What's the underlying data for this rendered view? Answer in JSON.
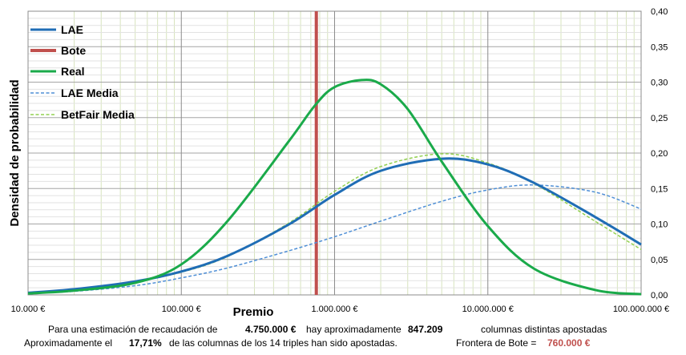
{
  "chart_data": {
    "type": "line",
    "title": "",
    "xlabel": "Premio",
    "ylabel": "Densidad de probabilidad",
    "x_scale": "log",
    "xlim": [
      10000,
      100000000
    ],
    "ylim": [
      0,
      0.4
    ],
    "x_ticks": [
      "10.000 €",
      "100.000 €",
      "1.000.000 €",
      "10.000.000 €",
      "100.000.000 €"
    ],
    "y_ticks": [
      "0,00",
      "0,05",
      "0,10",
      "0,15",
      "0,20",
      "0,25",
      "0,30",
      "0,35",
      "0,40"
    ],
    "grid": true,
    "legend_position": "top-left",
    "series": [
      {
        "name": "LAE",
        "color": "#1f6db5",
        "style": "solid",
        "width": 3,
        "x": [
          10000,
          20000,
          50000,
          100000,
          200000,
          500000,
          1000000,
          2000000,
          5000000,
          10000000,
          20000000,
          50000000,
          100000000
        ],
        "y": [
          0.003,
          0.008,
          0.019,
          0.033,
          0.055,
          0.099,
          0.141,
          0.175,
          0.192,
          0.184,
          0.158,
          0.11,
          0.071
        ]
      },
      {
        "name": "Bote",
        "color": "#c0504d",
        "style": "solid",
        "width": 4,
        "x": [
          760000,
          760000
        ],
        "y": [
          0,
          0.4
        ]
      },
      {
        "name": "Real",
        "color": "#1aaa4a",
        "style": "solid",
        "width": 3,
        "x": [
          10000,
          20000,
          50000,
          100000,
          200000,
          500000,
          750000,
          1000000,
          1500000,
          2000000,
          3000000,
          5000000,
          10000000,
          20000000,
          50000000,
          100000000
        ],
        "y": [
          0.002,
          0.006,
          0.017,
          0.043,
          0.104,
          0.216,
          0.268,
          0.293,
          0.303,
          0.297,
          0.262,
          0.188,
          0.097,
          0.037,
          0.007,
          0.001
        ]
      },
      {
        "name": "LAE Media",
        "color": "#4f8fd6",
        "style": "dashed",
        "width": 1.5,
        "x": [
          10000,
          20000,
          50000,
          100000,
          200000,
          500000,
          1000000,
          2000000,
          5000000,
          10000000,
          20000000,
          50000000,
          100000000
        ],
        "y": [
          0.002,
          0.005,
          0.013,
          0.024,
          0.038,
          0.062,
          0.082,
          0.104,
          0.132,
          0.148,
          0.155,
          0.145,
          0.121
        ]
      },
      {
        "name": "BetFair Media",
        "color": "#92d050",
        "style": "dashed",
        "width": 1.5,
        "x": [
          10000,
          20000,
          50000,
          100000,
          200000,
          500000,
          1000000,
          2000000,
          5000000,
          10000000,
          20000000,
          50000000,
          100000000
        ],
        "y": [
          0.003,
          0.008,
          0.019,
          0.032,
          0.054,
          0.101,
          0.146,
          0.181,
          0.199,
          0.186,
          0.157,
          0.104,
          0.064
        ]
      }
    ]
  },
  "footer": {
    "line1_a": "Para  una estimación de recaudación de",
    "line1_recaudacion": "4.750.000 €",
    "line1_b": "hay aproximadamente",
    "line1_columnas": "847.209",
    "line1_c": "columnas distintas apostadas",
    "line2_a": "Aproximadamente el",
    "line2_pct": "17,71%",
    "line2_b": "de las columnas de los 14 triples han sido apostadas.",
    "line2_c": "Frontera de Bote =",
    "line2_frontera": "760.000 €"
  }
}
